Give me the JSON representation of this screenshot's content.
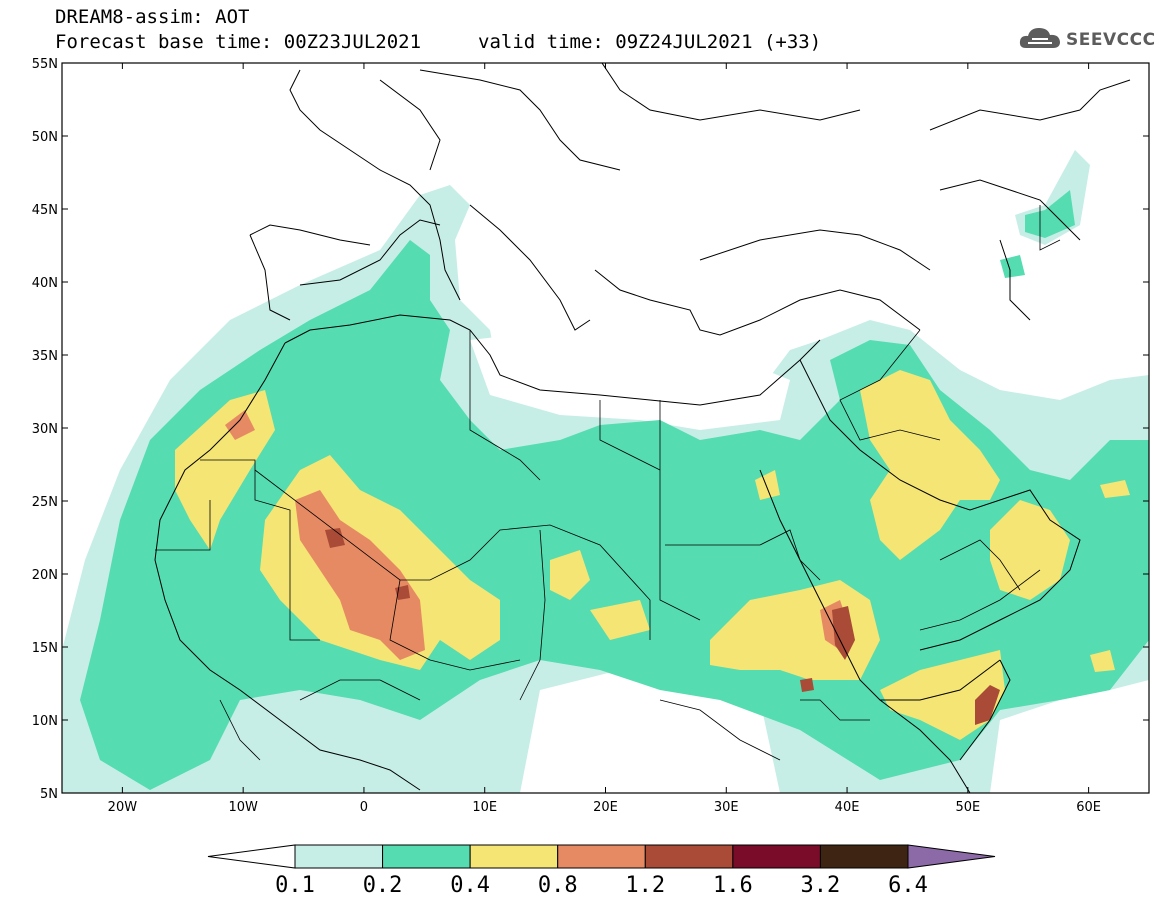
{
  "header": {
    "title": "DREAM8-assim: AOT",
    "base_time": "Forecast base time: 00Z23JUL2021",
    "valid_time": "valid time: 09Z24JUL2021 (+33)",
    "logo_text": "SEEVCCC",
    "logo_icon": "cloud-icon"
  },
  "map": {
    "lon_range": [
      -25,
      65
    ],
    "lat_range": [
      5,
      55
    ],
    "lat_labels": [
      "55N",
      "50N",
      "45N",
      "40N",
      "35N",
      "30N",
      "25N",
      "20N",
      "15N",
      "10N",
      "5N"
    ],
    "lon_labels": [
      "20W",
      "10W",
      "0",
      "10E",
      "20E",
      "30E",
      "40E",
      "50E",
      "60E"
    ]
  },
  "legend": {
    "levels": [
      "0.1",
      "0.2",
      "0.4",
      "0.8",
      "1.2",
      "1.6",
      "3.2",
      "6.4"
    ],
    "colors": [
      "#ffffff",
      "#c6eee6",
      "#55dcb0",
      "#f5e574",
      "#e68a64",
      "#a94b36",
      "#7a0c2a",
      "#3e2412",
      "#8c6aa8"
    ]
  }
}
